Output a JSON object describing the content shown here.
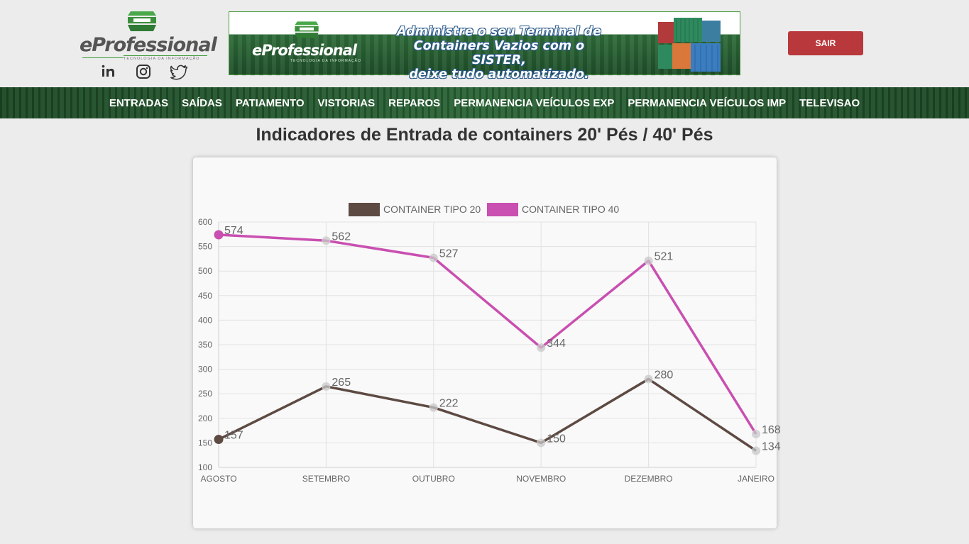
{
  "header": {
    "logo": {
      "name": "eProfessional",
      "tagline": "TECNOLOGIA DA INFORMAÇÃO"
    },
    "socials": [
      {
        "name": "linkedin-icon"
      },
      {
        "name": "instagram-icon"
      },
      {
        "name": "twitter-icon"
      }
    ],
    "banner": {
      "logo_name": "eProfessional",
      "logo_tagline": "TECNOLOGIA DA INFORMAÇÃO",
      "line1": "Administre o seu Terminal de",
      "line2": "Containers Vazios com o SISTER,",
      "line3": "deixe tudo automatizado."
    },
    "logout_label": "SAIR"
  },
  "nav": {
    "items": [
      "ENTRADAS",
      "SAÍDAS",
      "PATIAMENTO",
      "VISTORIAS",
      "REPAROS",
      "PERMANENCIA VEÍCULOS EXP",
      "PERMANENCIA VEÍCULOS IMP",
      "TELEVISAO"
    ]
  },
  "page": {
    "title": "Indicadores de Entrada de containers 20' Pés / 40' Pés"
  },
  "colors": {
    "accent": "#b8383b",
    "nav": "#24572e",
    "series20": "#5d4a42",
    "series40": "#c94fb0"
  },
  "chart_data": {
    "type": "line",
    "categories": [
      "AGOSTO",
      "SETEMBRO",
      "OUTUBRO",
      "NOVEMBRO",
      "DEZEMBRO",
      "JANEIRO"
    ],
    "series": [
      {
        "name": "CONTAINER TIPO 20",
        "values": [
          157,
          265,
          222,
          150,
          280,
          134
        ],
        "color": "#5d4a42"
      },
      {
        "name": "CONTAINER TIPO 40",
        "values": [
          574,
          562,
          527,
          344,
          521,
          168
        ],
        "color": "#c94fb0"
      }
    ],
    "title": "",
    "xlabel": "",
    "ylabel": "",
    "ylim": [
      100,
      600
    ],
    "yticks": [
      100,
      150,
      200,
      250,
      300,
      350,
      400,
      450,
      500,
      550,
      600
    ],
    "grid": true,
    "legend_position": "top"
  }
}
